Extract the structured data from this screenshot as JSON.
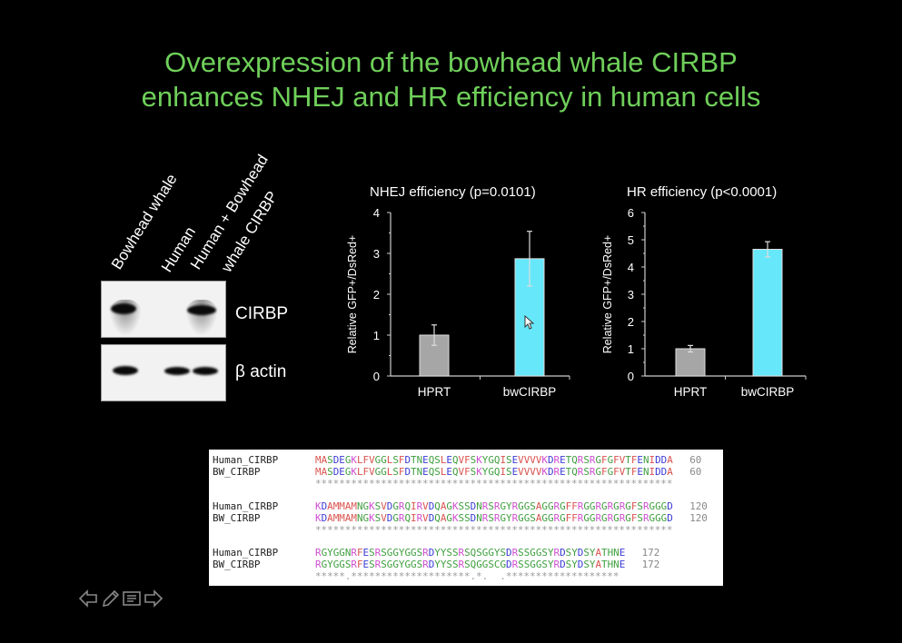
{
  "slide": {
    "title_line1": "Overexpression of the bowhead whale CIRBP",
    "title_line2": "enhances NHEJ and HR efficiency in human cells"
  },
  "western_blot": {
    "lanes": [
      "Bowhead whale",
      "Human",
      "Human + Bowhead",
      "whale CIRBP"
    ],
    "bands": [
      "CIRBP",
      "β actin"
    ]
  },
  "chart_data": [
    {
      "type": "bar",
      "title": "NHEJ efficiency (p=0.0101)",
      "ylabel": "Relative GFP+/DsRed+",
      "categories": [
        "HPRT",
        "bwCIRBP"
      ],
      "values": [
        1.0,
        2.87
      ],
      "errors": [
        0.25,
        0.67
      ],
      "colors": [
        "#a6a6a6",
        "#66e8fa"
      ],
      "ylim": [
        0,
        4
      ],
      "yticks": [
        "0",
        "1",
        "2",
        "3",
        "4"
      ],
      "grid": false
    },
    {
      "type": "bar",
      "title": "HR efficiency (p<0.0001)",
      "ylabel": "Relative GFP+/DsRed+",
      "categories": [
        "HPRT",
        "bwCIRBP"
      ],
      "values": [
        1.0,
        4.65
      ],
      "errors": [
        0.12,
        0.28
      ],
      "colors": [
        "#a6a6a6",
        "#66e8fa"
      ],
      "ylim": [
        0,
        6
      ],
      "yticks": [
        "0",
        "1",
        "2",
        "3",
        "4",
        "5",
        "6"
      ],
      "grid": false
    }
  ],
  "alignment": {
    "blocks": [
      {
        "rows": [
          {
            "name": "Human_CIRBP",
            "seq": "MASDEGKLFVGGLSFDTNEQSLEQVFSKYGQISEVVVVKDRETQRSRGFGFVTFENIDDA",
            "num": "60"
          },
          {
            "name": "BW_CIRBP",
            "seq": "MASDEGKLFVGGLSFDTNEQSLEQVFSKYGQISEVVVVKDRETQRSRGFGFVTFENIDDA",
            "num": "60"
          }
        ],
        "consensus": "************************************************************"
      },
      {
        "rows": [
          {
            "name": "Human_CIRBP",
            "seq": "KDAMMAMNGKSVDGRQIRVDQAGKSSDNRSRGYRGGSAGGRGFFRGGRGRGRGFSRGGGD",
            "num": "120"
          },
          {
            "name": "BW_CIRBP",
            "seq": "KDAMMAMNGKSVDGRQIRVDQAGKSSDNRSRGYRGGSAGGRGFFRGGRGRGRGFSRGGGD",
            "num": "120"
          }
        ],
        "consensus": "************************************************************"
      },
      {
        "rows": [
          {
            "name": "Human_CIRBP",
            "seq": "RGYGGNRFESRSGGYGGSRDYYSSRSQSGGYSDRSSGGSYRDSYDSYATHNE",
            "num": "172"
          },
          {
            "name": "BW_CIRBP",
            "seq": "RGYGGSRFESRSGGYGGSRDYYSSRSQGGSCGDRSSGGSYRDSYDSYATHNE",
            "num": "172"
          }
        ],
        "consensus": "*****.********************.*.  .*******************"
      }
    ],
    "residue_colors": {
      "hydrophobic": "#d9534f",
      "acidic": "#3b3bd6",
      "basic": "#d04fd0",
      "polar": "#3f9f3f"
    }
  },
  "navigation": {
    "icons": [
      "arrow-left-icon",
      "pencil-icon",
      "menu-icon",
      "arrow-right-icon"
    ]
  }
}
